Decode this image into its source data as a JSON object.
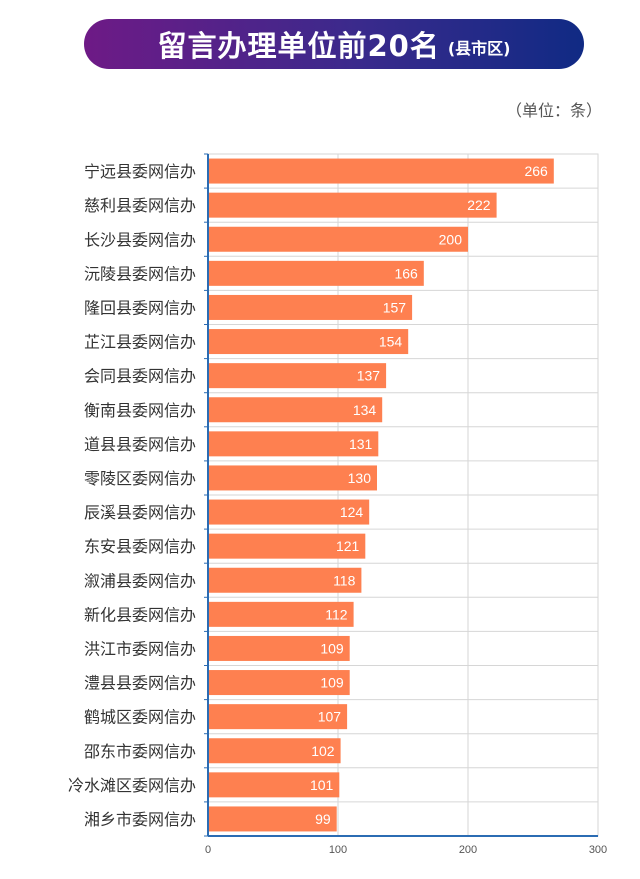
{
  "header": {
    "title": "留言办理单位前20名",
    "subtitle": "(县市区)"
  },
  "unit_label": "（单位：条）",
  "colors": {
    "bar": "#fe8050",
    "banner_start": "#6e1a86",
    "banner_end": "#102a84",
    "axis": "#2b6cb3",
    "grid": "#d6d6d6"
  },
  "chart_data": {
    "type": "bar",
    "orientation": "horizontal",
    "categories": [
      "宁远县委网信办",
      "慈利县委网信办",
      "长沙县委网信办",
      "沅陵县委网信办",
      "隆回县委网信办",
      "芷江县委网信办",
      "会同县委网信办",
      "衡南县委网信办",
      "道县县委网信办",
      "零陵区委网信办",
      "辰溪县委网信办",
      "东安县委网信办",
      "溆浦县委网信办",
      "新化县委网信办",
      "洪江市委网信办",
      "澧县县委网信办",
      "鹤城区委网信办",
      "邵东市委网信办",
      "冷水滩区委网信办",
      "湘乡市委网信办"
    ],
    "values": [
      266,
      222,
      200,
      166,
      157,
      154,
      137,
      134,
      131,
      130,
      124,
      121,
      118,
      112,
      109,
      109,
      107,
      102,
      101,
      99
    ],
    "xlim": [
      0,
      300
    ],
    "xticks": [
      0,
      100,
      200,
      300
    ],
    "grid": true
  }
}
